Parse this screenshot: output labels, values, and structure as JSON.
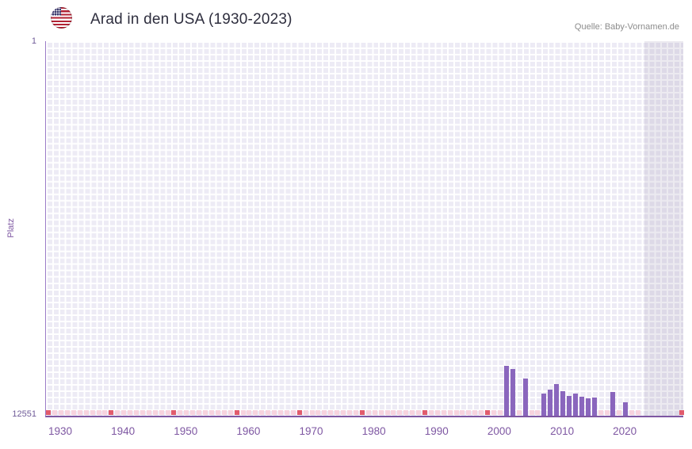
{
  "header": {
    "title": "Arad in den USA (1930-2023)",
    "source": "Quelle: Baby-Vornamen.de"
  },
  "colors": {
    "bar": "#8a66bd",
    "strip_light": "#f7d3de",
    "strip_dark": "#e15b6c",
    "axis": "#7e57a2",
    "plot_bg": "#edebf5",
    "future_overlay": "rgba(137,125,160,0.16)",
    "tick_text": "#7e57a2"
  },
  "chart_data": {
    "type": "bar",
    "title": "Arad in den USA (1930-2023)",
    "ylabel": "Platz",
    "source": "Quelle: Baby-Vornamen.de",
    "y_axis": {
      "min": 1,
      "max": 12551,
      "inverted": true,
      "top_label": "1",
      "bottom_label": "12551"
    },
    "x_ticks": [
      "1930",
      "1940",
      "1950",
      "1960",
      "1970",
      "1980",
      "1990",
      "2000",
      "2010",
      "2020"
    ],
    "x_range": [
      1927.6,
      2029.2
    ],
    "future_region_start": 2023,
    "series": [
      {
        "year": 2001,
        "rank": 10880
      },
      {
        "year": 2002,
        "rank": 10990
      },
      {
        "year": 2004,
        "rank": 11300
      },
      {
        "year": 2007,
        "rank": 11810
      },
      {
        "year": 2008,
        "rank": 11680
      },
      {
        "year": 2009,
        "rank": 11490
      },
      {
        "year": 2010,
        "rank": 11730
      },
      {
        "year": 2011,
        "rank": 11890
      },
      {
        "year": 2012,
        "rank": 11810
      },
      {
        "year": 2013,
        "rank": 11910
      },
      {
        "year": 2014,
        "rank": 11970
      },
      {
        "year": 2015,
        "rank": 11940
      },
      {
        "year": 2018,
        "rank": 11760
      },
      {
        "year": 2020,
        "rank": 12100
      }
    ],
    "no_data_strip": {
      "start_year": 1928,
      "end_year": 2022,
      "dark_interval": 10,
      "edge_dark_year": 2029
    }
  }
}
